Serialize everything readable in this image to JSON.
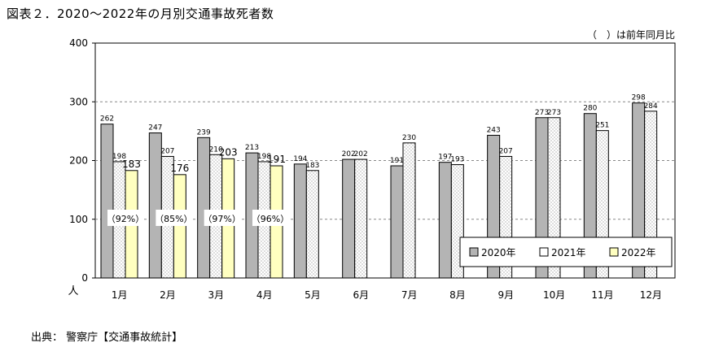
{
  "title": "図表２．2020～2022年の月別交通事故死者数",
  "note": "（　）は前年同月比",
  "source": "出典：  警察庁【交通事故統計】",
  "chart_data": {
    "type": "bar",
    "title": "図表２．2020～2022年の月別交通事故死者数",
    "ylabel": "人",
    "xlabel": "",
    "ylim": [
      0,
      400
    ],
    "yticks": [
      "0",
      "100",
      "200",
      "300",
      "400"
    ],
    "grid": "horizontal dashed at 100, 300",
    "legend_position": "bottom-right",
    "categories": [
      "1月",
      "2月",
      "3月",
      "4月",
      "5月",
      "6月",
      "7月",
      "8月",
      "9月",
      "10月",
      "11月",
      "12月"
    ],
    "series": [
      {
        "name": "2020年",
        "color": "#b4b4b4",
        "values": [
          262,
          247,
          239,
          213,
          194,
          202,
          191,
          197,
          243,
          273,
          280,
          298
        ]
      },
      {
        "name": "2021年",
        "color": "#ffffff",
        "values": [
          198,
          207,
          210,
          198,
          183,
          202,
          230,
          193,
          207,
          273,
          251,
          284
        ]
      },
      {
        "name": "2022年",
        "color": "#ffffc0",
        "values": [
          183,
          176,
          203,
          191,
          null,
          null,
          null,
          null,
          null,
          null,
          null,
          null
        ]
      }
    ],
    "ratios_2022": [
      "（92%）",
      "（85%）",
      "（97%）",
      "（96%）"
    ]
  }
}
